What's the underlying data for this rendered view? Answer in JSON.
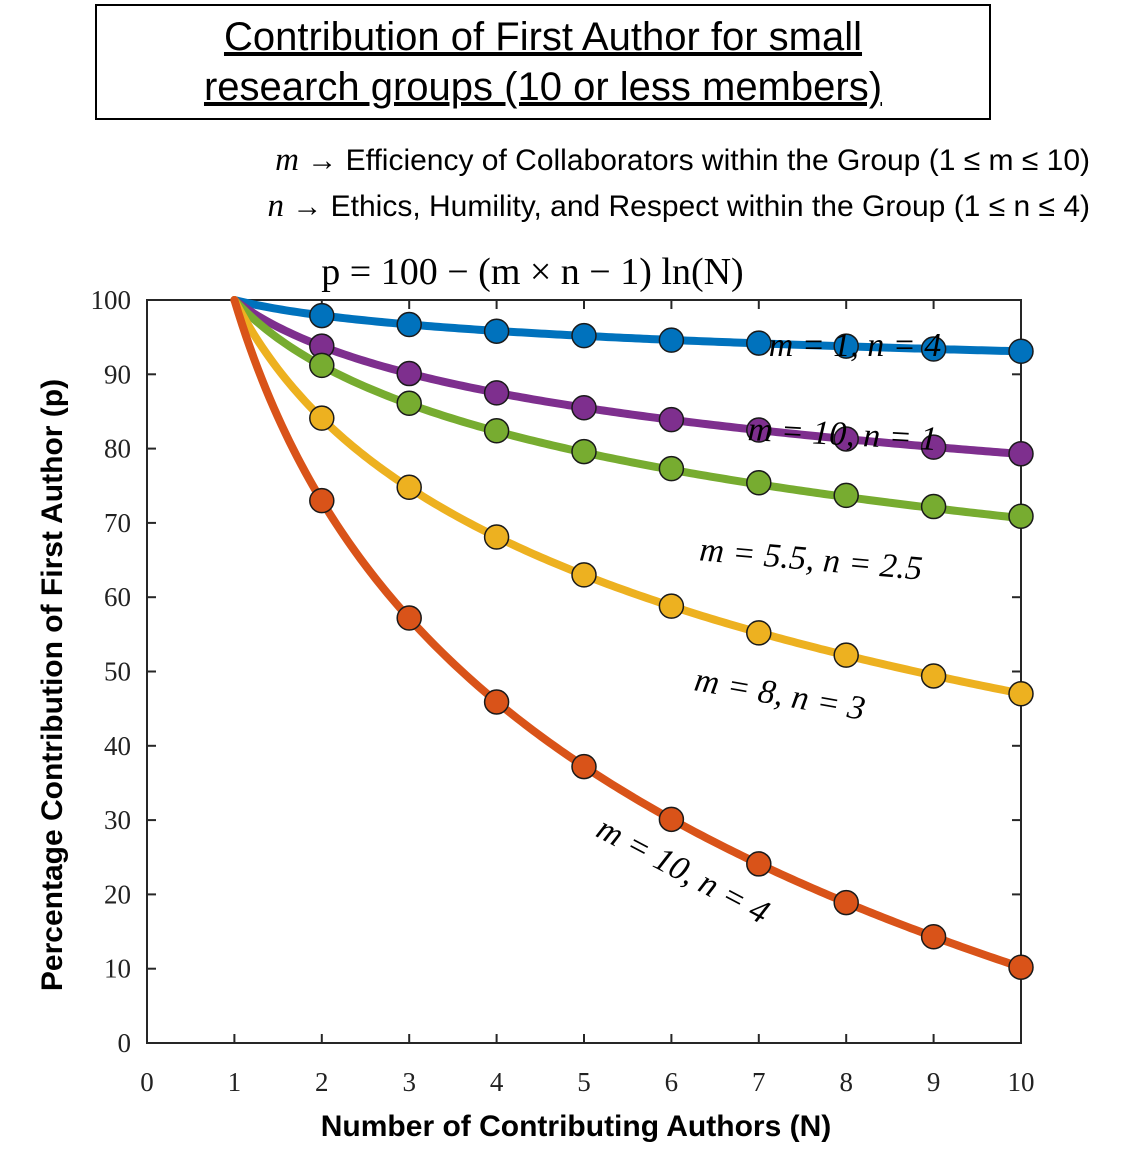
{
  "title": {
    "line1": "Contribution of First Author for small",
    "line2": "research groups (10 or less members)"
  },
  "definitions": {
    "m_symbol": "m",
    "m_text": " → Efficiency of Collaborators within the Group (1 ≤ m ≤ 10)",
    "n_symbol": "n",
    "n_text": " → Ethics, Humility, and Respect within the Group (1 ≤ n ≤ 4)"
  },
  "formula": "p = 100 − (m × n − 1) ln(N)",
  "chart_data": {
    "type": "line",
    "xlabel": "Number of Contributing Authors (N)",
    "ylabel": "Percentage Contribution of First Author (p)",
    "xlim": [
      0,
      10
    ],
    "ylim": [
      0,
      100
    ],
    "xticks": [
      0,
      1,
      2,
      3,
      4,
      5,
      6,
      7,
      8,
      9,
      10
    ],
    "yticks": [
      0,
      10,
      20,
      30,
      40,
      50,
      60,
      70,
      80,
      90,
      100
    ],
    "grid": false,
    "x": [
      2,
      3,
      4,
      5,
      6,
      7,
      8,
      9,
      10
    ],
    "series": [
      {
        "name": "m = 1, n = 4",
        "m": 1,
        "n": 4,
        "color": "#0072bd",
        "values": [
          97.9,
          96.7,
          95.8,
          95.2,
          94.6,
          94.2,
          93.8,
          93.4,
          93.1
        ]
      },
      {
        "name": "m = 10, n = 1",
        "m": 10,
        "n": 1,
        "color": "#7e2f8e",
        "values": [
          93.8,
          90.1,
          87.5,
          85.5,
          83.9,
          82.5,
          81.3,
          80.2,
          79.3
        ]
      },
      {
        "name": "m = 5.5, n = 2.5",
        "m": 5.5,
        "n": 2.5,
        "color": "#77ac30",
        "values": [
          91.2,
          86.1,
          82.4,
          79.6,
          77.3,
          75.4,
          73.7,
          72.2,
          70.9
        ]
      },
      {
        "name": "m = 8, n = 3",
        "m": 8,
        "n": 3,
        "color": "#edb120",
        "values": [
          84.1,
          74.8,
          68.1,
          63.0,
          58.8,
          55.2,
          52.2,
          49.4,
          47.0
        ]
      },
      {
        "name": "m = 10, n = 4",
        "m": 10,
        "n": 4,
        "color": "#d95319",
        "values": [
          73.0,
          57.2,
          45.9,
          37.2,
          30.1,
          24.1,
          18.9,
          14.3,
          10.2
        ]
      }
    ]
  }
}
